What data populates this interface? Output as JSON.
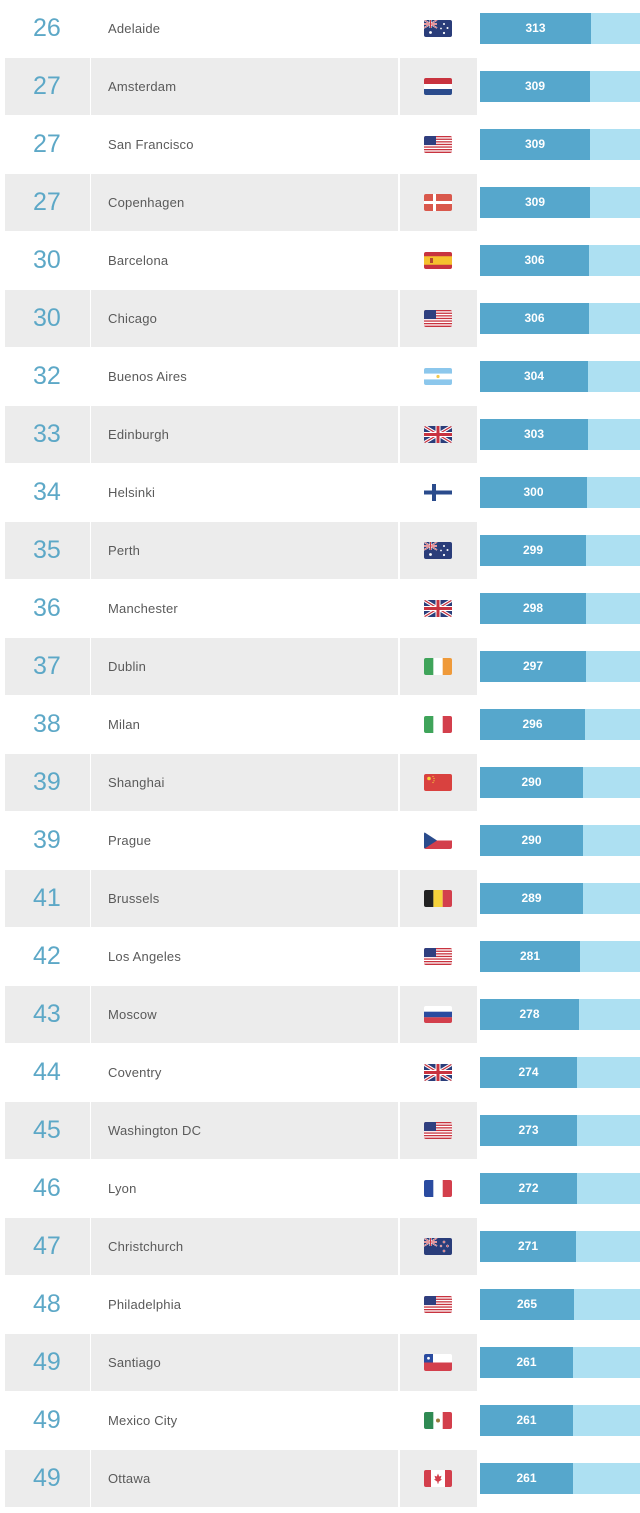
{
  "scale": {
    "min": 0,
    "max": 450
  },
  "rows": [
    {
      "rank": "26",
      "city": "Adelaide",
      "score": 313,
      "score_label": "313",
      "flag": "australia-flag-icon"
    },
    {
      "rank": "27",
      "city": "Amsterdam",
      "score": 309,
      "score_label": "309",
      "flag": "netherlands-flag-icon"
    },
    {
      "rank": "27",
      "city": "San Francisco",
      "score": 309,
      "score_label": "309",
      "flag": "usa-flag-icon"
    },
    {
      "rank": "27",
      "city": "Copenhagen",
      "score": 309,
      "score_label": "309",
      "flag": "denmark-flag-icon"
    },
    {
      "rank": "30",
      "city": "Barcelona",
      "score": 306,
      "score_label": "306",
      "flag": "spain-flag-icon"
    },
    {
      "rank": "30",
      "city": "Chicago",
      "score": 306,
      "score_label": "306",
      "flag": "usa-flag-icon"
    },
    {
      "rank": "32",
      "city": "Buenos Aires",
      "score": 304,
      "score_label": "304",
      "flag": "argentina-flag-icon"
    },
    {
      "rank": "33",
      "city": "Edinburgh",
      "score": 303,
      "score_label": "303",
      "flag": "uk-flag-icon"
    },
    {
      "rank": "34",
      "city": "Helsinki",
      "score": 300,
      "score_label": "300",
      "flag": "finland-flag-icon"
    },
    {
      "rank": "35",
      "city": "Perth",
      "score": 299,
      "score_label": "299",
      "flag": "australia-flag-icon"
    },
    {
      "rank": "36",
      "city": "Manchester",
      "score": 298,
      "score_label": "298",
      "flag": "uk-flag-icon"
    },
    {
      "rank": "37",
      "city": "Dublin",
      "score": 297,
      "score_label": "297",
      "flag": "ireland-flag-icon"
    },
    {
      "rank": "38",
      "city": "Milan",
      "score": 296,
      "score_label": "296",
      "flag": "italy-flag-icon"
    },
    {
      "rank": "39",
      "city": "Shanghai",
      "score": 290,
      "score_label": "290",
      "flag": "china-flag-icon"
    },
    {
      "rank": "39",
      "city": "Prague",
      "score": 290,
      "score_label": "290",
      "flag": "czech-flag-icon"
    },
    {
      "rank": "41",
      "city": "Brussels",
      "score": 289,
      "score_label": "289",
      "flag": "belgium-flag-icon"
    },
    {
      "rank": "42",
      "city": "Los Angeles",
      "score": 281,
      "score_label": "281",
      "flag": "usa-flag-icon"
    },
    {
      "rank": "43",
      "city": "Moscow",
      "score": 278,
      "score_label": "278",
      "flag": "russia-flag-icon"
    },
    {
      "rank": "44",
      "city": "Coventry",
      "score": 274,
      "score_label": "274",
      "flag": "uk-flag-icon"
    },
    {
      "rank": "45",
      "city": "Washington DC",
      "score": 273,
      "score_label": "273",
      "flag": "usa-flag-icon"
    },
    {
      "rank": "46",
      "city": "Lyon",
      "score": 272,
      "score_label": "272",
      "flag": "france-flag-icon"
    },
    {
      "rank": "47",
      "city": "Christchurch",
      "score": 271,
      "score_label": "271",
      "flag": "new-zealand-flag-icon"
    },
    {
      "rank": "48",
      "city": "Philadelphia",
      "score": 265,
      "score_label": "265",
      "flag": "usa-flag-icon"
    },
    {
      "rank": "49",
      "city": "Santiago",
      "score": 261,
      "score_label": "261",
      "flag": "chile-flag-icon"
    },
    {
      "rank": "49",
      "city": "Mexico City",
      "score": 261,
      "score_label": "261",
      "flag": "mexico-flag-icon"
    },
    {
      "rank": "49",
      "city": "Ottawa",
      "score": 261,
      "score_label": "261",
      "flag": "canada-flag-icon"
    }
  ],
  "colors": {
    "rank_text": "#5da8c7",
    "bar_fill": "#56a7cc",
    "bar_track": "#ade0f2",
    "row_shade": "#ececec"
  }
}
